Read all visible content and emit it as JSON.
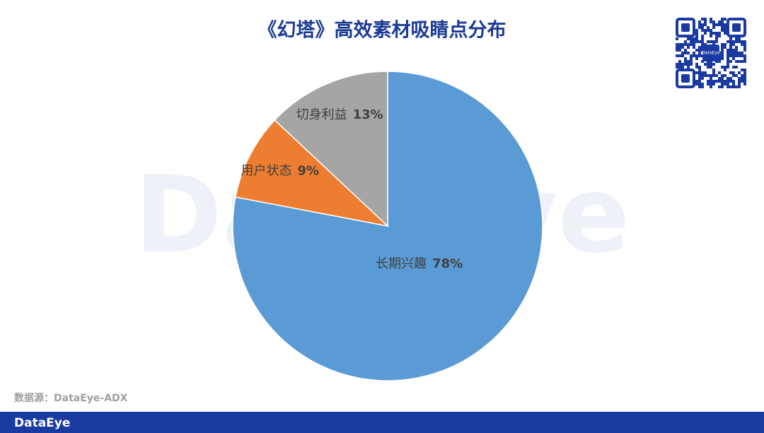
{
  "chart_data": {
    "type": "pie",
    "title": "《幻塔》高效素材吸睛点分布",
    "categories": [
      "长期兴趣",
      "用户状态",
      "切身利益"
    ],
    "values": [
      78,
      9,
      13
    ],
    "value_labels": [
      "78%",
      "9%",
      "13%"
    ],
    "colors": [
      "#5b9bd5",
      "#ed7d31",
      "#a5a5a5"
    ]
  },
  "source": "数据源：DataEye-ADX",
  "watermark": "DataEye",
  "qr_logo": "DataEye",
  "footer_brand": "DataEye"
}
